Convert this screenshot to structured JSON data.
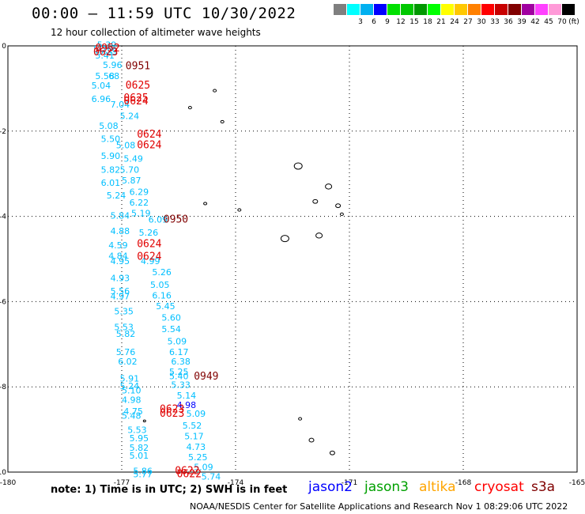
{
  "header": {
    "title": "00:00 — 11:59 UTC 10/30/2022",
    "subtitle": "12 hour collection of altimeter wave heights"
  },
  "legend": {
    "unit_label": "(ft)",
    "bins": [
      {
        "label": "",
        "color": "#7f7f7f"
      },
      {
        "label": "3",
        "color": "#00ffff"
      },
      {
        "label": "6",
        "color": "#00b0f0"
      },
      {
        "label": "9",
        "color": "#0000ff"
      },
      {
        "label": "12",
        "color": "#00e000"
      },
      {
        "label": "15",
        "color": "#00c800"
      },
      {
        "label": "18",
        "color": "#009800"
      },
      {
        "label": "21",
        "color": "#00ff00"
      },
      {
        "label": "24",
        "color": "#ffff00"
      },
      {
        "label": "27",
        "color": "#ffc800"
      },
      {
        "label": "30",
        "color": "#ff8000"
      },
      {
        "label": "33",
        "color": "#ff0000"
      },
      {
        "label": "36",
        "color": "#c80000"
      },
      {
        "label": "39",
        "color": "#800000"
      },
      {
        "label": "42",
        "color": "#a000a0"
      },
      {
        "label": "45",
        "color": "#ff40ff"
      },
      {
        "label": "70",
        "color": "#ff9ad8"
      },
      {
        "label": "",
        "color": "#000000"
      }
    ]
  },
  "axes": {
    "x_ticks": [
      -180,
      -177,
      -174,
      -171,
      -168,
      -165
    ],
    "x_tick_labels": [
      "-180",
      "-177",
      "-174",
      "-171",
      "-168",
      "-165"
    ],
    "y_ticks": [
      0,
      -2,
      -4,
      -6,
      -8,
      -10
    ],
    "y_tick_labels": [
      "0",
      "-2",
      "-4",
      "-6",
      "-8",
      "-10"
    ],
    "xlim": [
      -180,
      -165
    ],
    "ylim": [
      -10,
      0
    ]
  },
  "colors": {
    "swh": "#00bfff",
    "time": "#e00000",
    "time_dark": "#800000",
    "grid": "#000000"
  },
  "swh_labels": [
    {
      "lon": -177.65,
      "lat": -0.05,
      "text": "5.39"
    },
    {
      "lon": -177.75,
      "lat": -0.15,
      "text": "5.20"
    },
    {
      "lon": -177.62,
      "lat": -0.2,
      "text": "5.29"
    },
    {
      "lon": -177.7,
      "lat": -0.3,
      "text": "5.41"
    },
    {
      "lon": -177.5,
      "lat": -0.52,
      "text": "5.96"
    },
    {
      "lon": -177.7,
      "lat": -0.78,
      "text": "5.58"
    },
    {
      "lon": -177.35,
      "lat": -0.78,
      "text": "68"
    },
    {
      "lon": -177.8,
      "lat": -1.0,
      "text": "5.04"
    },
    {
      "lon": -177.8,
      "lat": -1.32,
      "text": "6.96"
    },
    {
      "lon": -177.3,
      "lat": -1.45,
      "text": "7.04"
    },
    {
      "lon": -177.05,
      "lat": -1.72,
      "text": "5.24"
    },
    {
      "lon": -177.6,
      "lat": -1.95,
      "text": "5.08"
    },
    {
      "lon": -177.55,
      "lat": -2.25,
      "text": "5.50"
    },
    {
      "lon": -177.15,
      "lat": -2.4,
      "text": "5.08"
    },
    {
      "lon": -177.55,
      "lat": -2.65,
      "text": "5.90"
    },
    {
      "lon": -176.95,
      "lat": -2.72,
      "text": "5.49"
    },
    {
      "lon": -177.55,
      "lat": -2.98,
      "text": "5.82"
    },
    {
      "lon": -177.05,
      "lat": -2.98,
      "text": "5.70"
    },
    {
      "lon": -177.0,
      "lat": -3.23,
      "text": "5.87"
    },
    {
      "lon": -177.55,
      "lat": -3.28,
      "text": "6.01"
    },
    {
      "lon": -176.8,
      "lat": -3.5,
      "text": "6.29"
    },
    {
      "lon": -177.4,
      "lat": -3.58,
      "text": "5.24"
    },
    {
      "lon": -176.8,
      "lat": -3.75,
      "text": "6.22"
    },
    {
      "lon": -177.3,
      "lat": -4.05,
      "text": "5.84"
    },
    {
      "lon": -176.75,
      "lat": -4.0,
      "text": "5.19"
    },
    {
      "lon": -176.3,
      "lat": -4.15,
      "text": "6.09"
    },
    {
      "lon": -177.3,
      "lat": -4.42,
      "text": "4.88"
    },
    {
      "lon": -176.55,
      "lat": -4.45,
      "text": "5.26"
    },
    {
      "lon": -177.35,
      "lat": -4.75,
      "text": "4.59"
    },
    {
      "lon": -177.35,
      "lat": -5.0,
      "text": "4.84"
    },
    {
      "lon": -177.3,
      "lat": -5.12,
      "text": "4.95"
    },
    {
      "lon": -176.5,
      "lat": -5.12,
      "text": "4.99"
    },
    {
      "lon": -176.2,
      "lat": -5.38,
      "text": "5.26"
    },
    {
      "lon": -177.3,
      "lat": -5.52,
      "text": "4.93"
    },
    {
      "lon": -176.25,
      "lat": -5.68,
      "text": "5.05"
    },
    {
      "lon": -177.3,
      "lat": -5.83,
      "text": "5.56"
    },
    {
      "lon": -176.2,
      "lat": -5.93,
      "text": "6.16"
    },
    {
      "lon": -177.3,
      "lat": -5.95,
      "text": "4.97"
    },
    {
      "lon": -176.1,
      "lat": -6.18,
      "text": "5.45"
    },
    {
      "lon": -177.2,
      "lat": -6.3,
      "text": "5.35"
    },
    {
      "lon": -175.95,
      "lat": -6.45,
      "text": "5.60"
    },
    {
      "lon": -177.2,
      "lat": -6.67,
      "text": "5.53"
    },
    {
      "lon": -175.95,
      "lat": -6.72,
      "text": "5.54"
    },
    {
      "lon": -177.15,
      "lat": -6.83,
      "text": "5.82"
    },
    {
      "lon": -175.8,
      "lat": -7.0,
      "text": "5.09"
    },
    {
      "lon": -177.15,
      "lat": -7.25,
      "text": "5.76"
    },
    {
      "lon": -175.75,
      "lat": -7.25,
      "text": "6.17"
    },
    {
      "lon": -177.1,
      "lat": -7.48,
      "text": "6.02"
    },
    {
      "lon": -175.7,
      "lat": -7.48,
      "text": "6.38"
    },
    {
      "lon": -175.75,
      "lat": -7.72,
      "text": "5.25"
    },
    {
      "lon": -175.75,
      "lat": -7.82,
      "text": "5.40"
    },
    {
      "lon": -177.05,
      "lat": -7.88,
      "text": "5.91"
    },
    {
      "lon": -177.05,
      "lat": -8.05,
      "text": "5.24"
    },
    {
      "lon": -175.7,
      "lat": -8.02,
      "text": "5.33"
    },
    {
      "lon": -177.0,
      "lat": -8.15,
      "text": "5.10"
    },
    {
      "lon": -175.55,
      "lat": -8.27,
      "text": "5.14"
    },
    {
      "lon": -177.0,
      "lat": -8.38,
      "text": "4.98"
    },
    {
      "lon": -176.95,
      "lat": -8.65,
      "text": "4.75"
    },
    {
      "lon": -175.3,
      "lat": -8.7,
      "text": "5.09"
    },
    {
      "lon": -177.0,
      "lat": -8.75,
      "text": "5.48"
    },
    {
      "lon": -175.4,
      "lat": -8.98,
      "text": "5.52"
    },
    {
      "lon": -176.85,
      "lat": -9.08,
      "text": "5.53"
    },
    {
      "lon": -175.35,
      "lat": -9.23,
      "text": "5.17"
    },
    {
      "lon": -176.8,
      "lat": -9.28,
      "text": "5.95"
    },
    {
      "lon": -175.3,
      "lat": -9.48,
      "text": "4.73"
    },
    {
      "lon": -176.8,
      "lat": -9.5,
      "text": "5.82"
    },
    {
      "lon": -176.8,
      "lat": -9.68,
      "text": "5.01"
    },
    {
      "lon": -175.25,
      "lat": -9.72,
      "text": "5.25"
    },
    {
      "lon": -175.1,
      "lat": -9.95,
      "text": "5.09"
    },
    {
      "lon": -176.7,
      "lat": -10.05,
      "text": "5.86"
    },
    {
      "lon": -176.7,
      "lat": -10.12,
      "text": "5.77"
    },
    {
      "lon": -174.9,
      "lat": -10.18,
      "text": "5.74"
    }
  ],
  "swh_labels_blue": [
    {
      "lon": -175.55,
      "lat": -8.5,
      "text": "4.98"
    }
  ],
  "time_labels": [
    {
      "lon": -177.7,
      "lat": -0.13,
      "text": "0952",
      "dark": false
    },
    {
      "lon": -177.75,
      "lat": -0.22,
      "text": "0623",
      "dark": false
    },
    {
      "lon": -176.9,
      "lat": -0.55,
      "text": "0951",
      "dark": true
    },
    {
      "lon": -176.9,
      "lat": -1.0,
      "text": "0625",
      "dark": false
    },
    {
      "lon": -176.95,
      "lat": -1.3,
      "text": "0625",
      "dark": false
    },
    {
      "lon": -176.95,
      "lat": -1.37,
      "text": "0624",
      "dark": false
    },
    {
      "lon": -176.6,
      "lat": -2.15,
      "text": "0624",
      "dark": false
    },
    {
      "lon": -176.6,
      "lat": -2.4,
      "text": "0624",
      "dark": false
    },
    {
      "lon": -175.9,
      "lat": -4.15,
      "text": "0950",
      "dark": true
    },
    {
      "lon": -176.6,
      "lat": -4.72,
      "text": "0624",
      "dark": false
    },
    {
      "lon": -176.6,
      "lat": -5.02,
      "text": "0624",
      "dark": false
    },
    {
      "lon": -175.1,
      "lat": -7.83,
      "text": "0949",
      "dark": true
    },
    {
      "lon": -176.0,
      "lat": -8.6,
      "text": "0623",
      "dark": false
    },
    {
      "lon": -176.0,
      "lat": -8.7,
      "text": "0623",
      "dark": false
    },
    {
      "lon": -175.6,
      "lat": -10.05,
      "text": "0622",
      "dark": false
    },
    {
      "lon": -175.55,
      "lat": -10.12,
      "text": "0622",
      "dark": false
    }
  ],
  "footer": {
    "note": "note: 1) Time is in UTC; 2) SWH is in feet",
    "satellites": [
      {
        "name": "jason2",
        "color": "#0000ff"
      },
      {
        "name": "jason3",
        "color": "#00a000"
      },
      {
        "name": "altika",
        "color": "#ffa500"
      },
      {
        "name": "cryosat",
        "color": "#ff0000"
      },
      {
        "name": "s3a",
        "color": "#800000"
      }
    ],
    "credit": "NOAA/NESDIS Center for Satellite Applications and Research   Nov  1 08:29:06 UTC 2022"
  }
}
